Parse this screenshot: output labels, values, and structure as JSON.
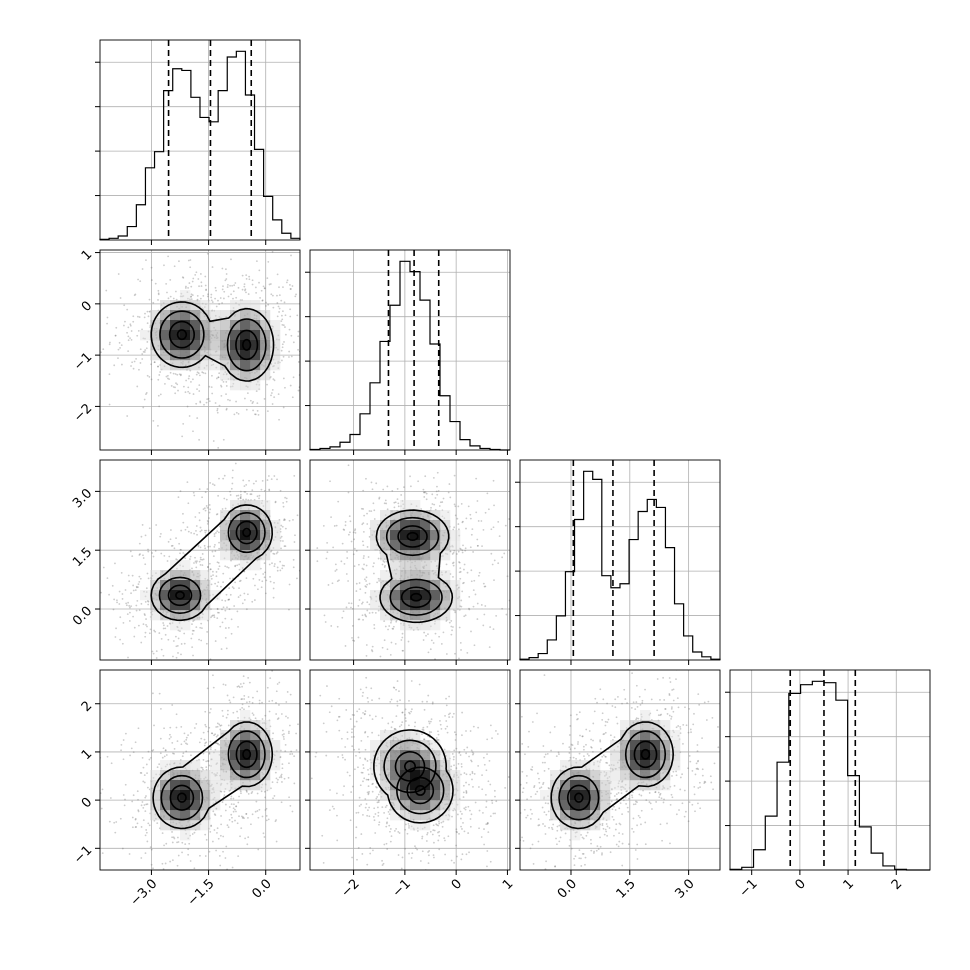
{
  "chart_data": {
    "type": "corner",
    "parameters": [
      "",
      "",
      "",
      ""
    ],
    "grid": true,
    "ranges": [
      [
        -4.35,
        0.9
      ],
      [
        -2.85,
        1.05
      ],
      [
        -1.3,
        3.8
      ],
      [
        -1.45,
        2.7
      ]
    ],
    "ticks": [
      {
        "values": [
          -3.0,
          -1.5,
          0.0
        ],
        "labels": [
          "−3.0",
          "−1.5",
          "0.0"
        ]
      },
      {
        "values": [
          -2,
          -1,
          0,
          1
        ],
        "labels": [
          "−2",
          "−1",
          "0",
          "1"
        ]
      },
      {
        "values": [
          0.0,
          1.5,
          3.0
        ],
        "labels": [
          "0.0",
          "1.5",
          "3.0"
        ]
      },
      {
        "values": [
          -1,
          0,
          1,
          2
        ],
        "labels": [
          "−1",
          "0",
          "1",
          "2"
        ]
      }
    ],
    "quantiles": [
      [
        -2.55,
        -1.45,
        -0.38
      ],
      [
        -1.32,
        -0.82,
        -0.34
      ],
      [
        0.06,
        1.07,
        2.12
      ],
      [
        -0.2,
        0.5,
        1.15
      ]
    ],
    "histograms": [
      {
        "counts": [
          2,
          5,
          12,
          40,
          105,
          215,
          263,
          445,
          510,
          505,
          425,
          365,
          352,
          445,
          545,
          562,
          432,
          270,
          130,
          60,
          20,
          5
        ],
        "bin_start": -4.35,
        "bin_width": 0.2386
      },
      {
        "counts": [
          1,
          3,
          6,
          15,
          30,
          70,
          130,
          210,
          280,
          365,
          345,
          290,
          205,
          105,
          55,
          20,
          8,
          3,
          1,
          0
        ],
        "bin_start": -2.85,
        "bin_width": 0.195
      },
      {
        "counts": [
          1,
          3,
          8,
          25,
          55,
          110,
          175,
          235,
          225,
          105,
          90,
          95,
          150,
          185,
          200,
          190,
          140,
          70,
          30,
          10,
          4,
          1
        ],
        "bin_start": -1.3,
        "bin_width": 0.2318
      },
      {
        "counts": [
          1,
          4,
          30,
          80,
          160,
          262,
          275,
          280,
          278,
          252,
          140,
          64,
          25,
          6,
          1,
          0,
          0
        ],
        "bin_start": -1.45,
        "bin_width": 0.2441
      }
    ],
    "pairs": [
      {
        "x": 0,
        "y": 1,
        "modes": [
          {
            "x": -2.2,
            "y": -0.6,
            "sx": 0.48,
            "sy": 0.38,
            "rho": 0.0
          },
          {
            "x": -0.5,
            "y": -0.8,
            "sx": 0.42,
            "sy": 0.42,
            "rho": 0.0
          }
        ]
      },
      {
        "x": 0,
        "y": 2,
        "modes": [
          {
            "x": -2.25,
            "y": 0.35,
            "sx": 0.45,
            "sy": 0.38,
            "rho": 0.0
          },
          {
            "x": -0.5,
            "y": 1.95,
            "sx": 0.4,
            "sy": 0.42,
            "rho": 0.0
          }
        ]
      },
      {
        "x": 1,
        "y": 2,
        "modes": [
          {
            "x": -0.78,
            "y": 0.3,
            "sx": 0.42,
            "sy": 0.38,
            "rho": 0.0
          },
          {
            "x": -0.85,
            "y": 1.85,
            "sx": 0.42,
            "sy": 0.4,
            "rho": 0.0
          }
        ]
      },
      {
        "x": 0,
        "y": 3,
        "modes": [
          {
            "x": -2.2,
            "y": 0.05,
            "sx": 0.45,
            "sy": 0.38,
            "rho": 0.0
          },
          {
            "x": -0.5,
            "y": 0.95,
            "sx": 0.4,
            "sy": 0.4,
            "rho": 0.0
          }
        ]
      },
      {
        "x": 1,
        "y": 3,
        "modes": [
          {
            "x": -0.9,
            "y": 0.7,
            "sx": 0.42,
            "sy": 0.45,
            "rho": -0.3
          },
          {
            "x": -0.7,
            "y": 0.2,
            "sx": 0.38,
            "sy": 0.4,
            "rho": 0.0
          }
        ]
      },
      {
        "x": 2,
        "y": 3,
        "modes": [
          {
            "x": 0.2,
            "y": 0.05,
            "sx": 0.42,
            "sy": 0.38,
            "rho": 0.0
          },
          {
            "x": 1.9,
            "y": 0.95,
            "sx": 0.42,
            "sy": 0.4,
            "rho": 0.0
          }
        ]
      }
    ]
  }
}
